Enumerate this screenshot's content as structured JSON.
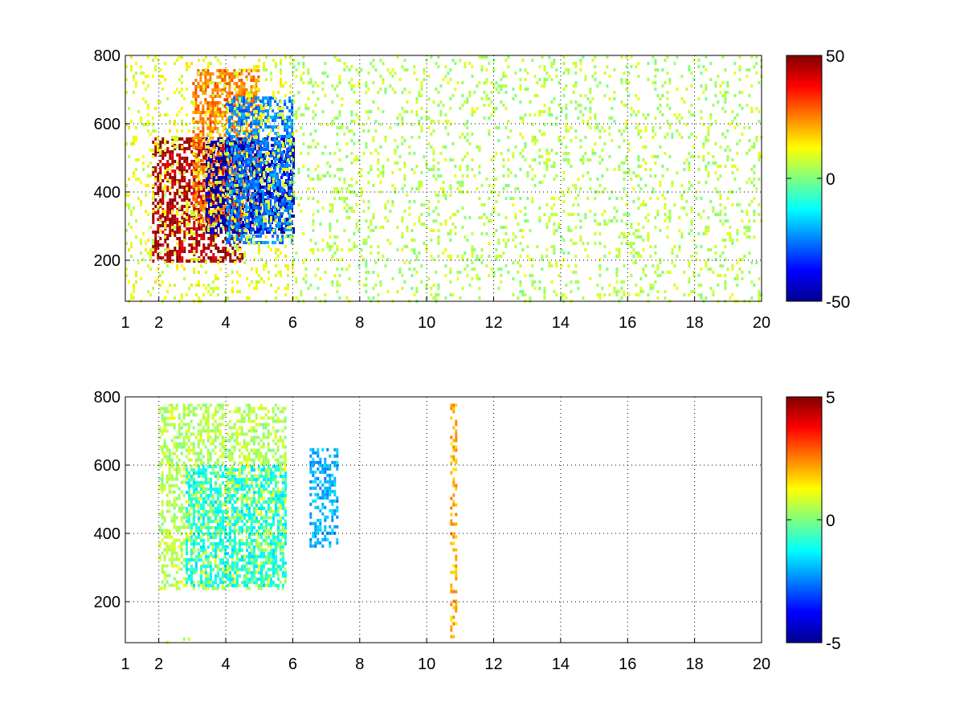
{
  "chart_data": [
    {
      "type": "heatmap",
      "panel": "top",
      "title": "",
      "xlabel": "",
      "ylabel": "",
      "xlim": [
        1,
        20
      ],
      "ylim": [
        80,
        800
      ],
      "x_ticks": [
        1,
        2,
        4,
        6,
        8,
        10,
        12,
        14,
        16,
        18,
        20
      ],
      "y_ticks": [
        200,
        400,
        600,
        800
      ],
      "grid": true,
      "colormap": "jet",
      "clim": [
        -50,
        50
      ],
      "colorbar_ticks": [
        -50,
        0,
        50
      ],
      "features": [
        {
          "x": [
            1.8,
            4.5
          ],
          "y": [
            200,
            560
          ],
          "value": 45
        },
        {
          "x": [
            3.0,
            5.0
          ],
          "y": [
            300,
            760
          ],
          "value": 25
        },
        {
          "x": [
            3.4,
            6.0
          ],
          "y": [
            280,
            560
          ],
          "value": -45
        },
        {
          "x": [
            4.0,
            6.0
          ],
          "y": [
            250,
            680
          ],
          "value": -25
        },
        {
          "x": [
            1.0,
            6.0
          ],
          "y": [
            80,
            800
          ],
          "value": 10
        },
        {
          "x": [
            6.0,
            20.0
          ],
          "y": [
            80,
            800
          ],
          "value": 5
        }
      ]
    },
    {
      "type": "heatmap",
      "panel": "bottom",
      "title": "",
      "xlabel": "",
      "ylabel": "",
      "xlim": [
        1,
        20
      ],
      "ylim": [
        80,
        800
      ],
      "x_ticks": [
        1,
        2,
        4,
        6,
        8,
        10,
        12,
        14,
        16,
        18,
        20
      ],
      "y_ticks": [
        200,
        400,
        600,
        800
      ],
      "grid": true,
      "colormap": "jet",
      "clim": [
        -5,
        5
      ],
      "colorbar_ticks": [
        -5,
        0,
        5
      ],
      "features": [
        {
          "x": [
            2.0,
            5.8
          ],
          "y": [
            240,
            780
          ],
          "value": 0.5
        },
        {
          "x": [
            2.8,
            5.8
          ],
          "y": [
            250,
            600
          ],
          "value": -1
        },
        {
          "x": [
            6.5,
            7.3
          ],
          "y": [
            360,
            650
          ],
          "value": -2
        },
        {
          "x": [
            10.7,
            10.9
          ],
          "y": [
            100,
            780
          ],
          "value": 2
        },
        {
          "x": [
            2.0,
            3.8
          ],
          "y": [
            80,
            95
          ],
          "value": 0.5
        }
      ]
    }
  ]
}
